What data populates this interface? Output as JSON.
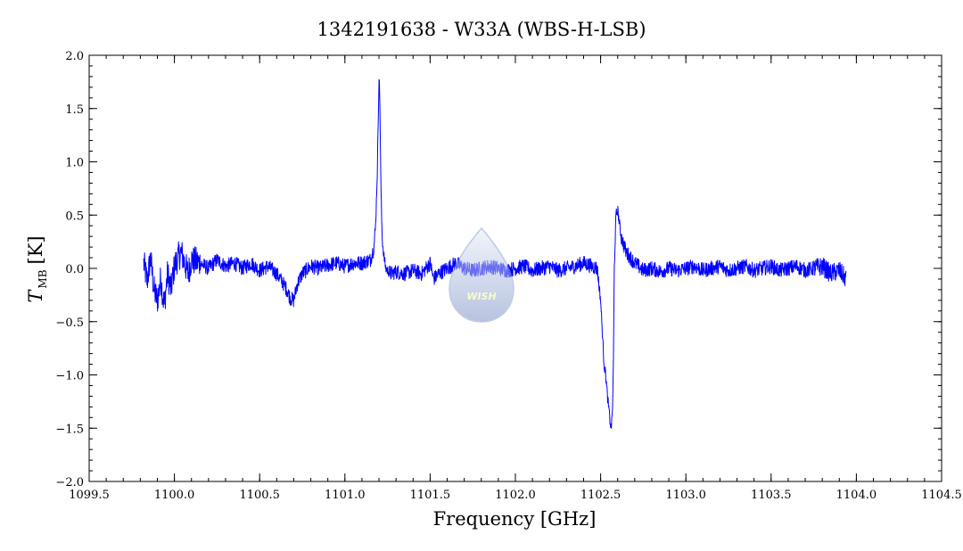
{
  "chart_data": {
    "type": "line",
    "title": "1342191638 - W33A (WBS-H-LSB)",
    "xlabel": "Frequency [GHz]",
    "ylabel_main": "T",
    "ylabel_sub": "MB",
    "ylabel_unit": "[K]",
    "xlim": [
      1099.5,
      1104.5
    ],
    "ylim": [
      -2.0,
      2.0
    ],
    "x_major_ticks": [
      1099.5,
      1100.0,
      1100.5,
      1101.0,
      1101.5,
      1102.0,
      1102.5,
      1103.0,
      1103.5,
      1104.0,
      1104.5
    ],
    "x_tick_labels": [
      "1099.5",
      "1100.0",
      "1100.5",
      "1101.0",
      "1101.5",
      "1102.0",
      "1102.5",
      "1103.0",
      "1103.5",
      "1104.0",
      "1104.5"
    ],
    "y_major_ticks": [
      -2.0,
      -1.5,
      -1.0,
      -0.5,
      0.0,
      0.5,
      1.0,
      1.5,
      2.0
    ],
    "y_tick_labels": [
      "-2.0",
      "-1.5",
      "-1.0",
      "-0.5",
      "0.0",
      "0.5",
      "1.0",
      "1.5",
      "2.0"
    ],
    "grid": false,
    "series_color": "#0000ff",
    "series": [
      {
        "x": [
          1099.82,
          1099.84,
          1099.86,
          1099.88,
          1099.9,
          1099.92,
          1099.94,
          1099.96,
          1099.98,
          1100.0,
          1100.02,
          1100.04,
          1100.06,
          1100.08,
          1100.1,
          1100.15,
          1100.2,
          1100.25,
          1100.3,
          1100.35,
          1100.4,
          1100.45,
          1100.5,
          1100.55,
          1100.6,
          1100.63,
          1100.66,
          1100.68,
          1100.7,
          1100.72,
          1100.75,
          1100.8,
          1100.85,
          1100.9,
          1100.95,
          1101.0,
          1101.05,
          1101.1,
          1101.15,
          1101.17,
          1101.18,
          1101.19,
          1101.2,
          1101.205,
          1101.21,
          1101.215,
          1101.22,
          1101.23,
          1101.24,
          1101.25,
          1101.27,
          1101.3,
          1101.35,
          1101.4,
          1101.45,
          1101.5,
          1101.52,
          1101.55,
          1101.6,
          1101.65,
          1101.7,
          1101.75,
          1101.8,
          1101.85,
          1101.9,
          1101.95,
          1102.0,
          1102.05,
          1102.1,
          1102.15,
          1102.2,
          1102.25,
          1102.3,
          1102.35,
          1102.4,
          1102.45,
          1102.48,
          1102.5,
          1102.51,
          1102.52,
          1102.53,
          1102.54,
          1102.55,
          1102.56,
          1102.565,
          1102.57,
          1102.575,
          1102.58,
          1102.59,
          1102.6,
          1102.62,
          1102.65,
          1102.7,
          1102.75,
          1102.8,
          1102.85,
          1102.9,
          1102.95,
          1103.0,
          1103.05,
          1103.1,
          1103.15,
          1103.2,
          1103.25,
          1103.3,
          1103.35,
          1103.4,
          1103.45,
          1103.5,
          1103.55,
          1103.6,
          1103.65,
          1103.7,
          1103.75,
          1103.8,
          1103.85,
          1103.9,
          1103.94
        ],
        "y": [
          0.05,
          -0.12,
          0.1,
          -0.2,
          -0.3,
          -0.1,
          -0.35,
          -0.05,
          -0.2,
          0.02,
          0.1,
          0.15,
          0.05,
          -0.05,
          0.08,
          0.05,
          0.0,
          0.08,
          0.02,
          0.05,
          0.0,
          0.05,
          -0.02,
          0.02,
          -0.05,
          -0.12,
          -0.2,
          -0.28,
          -0.3,
          -0.15,
          -0.05,
          0.02,
          0.0,
          0.03,
          0.05,
          0.02,
          0.05,
          0.05,
          0.08,
          0.2,
          0.4,
          0.9,
          1.8,
          1.6,
          0.9,
          0.5,
          0.25,
          0.1,
          0.0,
          -0.02,
          -0.05,
          -0.03,
          -0.05,
          -0.02,
          -0.05,
          0.05,
          -0.1,
          -0.05,
          0.0,
          0.05,
          0.0,
          -0.02,
          0.0,
          0.02,
          0.0,
          -0.02,
          0.0,
          0.02,
          -0.02,
          0.0,
          0.02,
          -0.02,
          0.0,
          0.02,
          0.05,
          0.02,
          0.0,
          -0.3,
          -0.6,
          -0.9,
          -1.0,
          -1.2,
          -1.35,
          -1.5,
          -1.45,
          -1.3,
          -0.9,
          0.0,
          0.5,
          0.55,
          0.3,
          0.15,
          0.05,
          -0.02,
          0.0,
          -0.03,
          0.0,
          -0.02,
          0.0,
          0.02,
          -0.02,
          0.0,
          0.02,
          -0.02,
          0.0,
          0.02,
          -0.02,
          0.0,
          0.02,
          -0.02,
          0.0,
          0.02,
          -0.02,
          0.0,
          0.02,
          -0.05,
          -0.02,
          -0.1
        ]
      }
    ]
  }
}
